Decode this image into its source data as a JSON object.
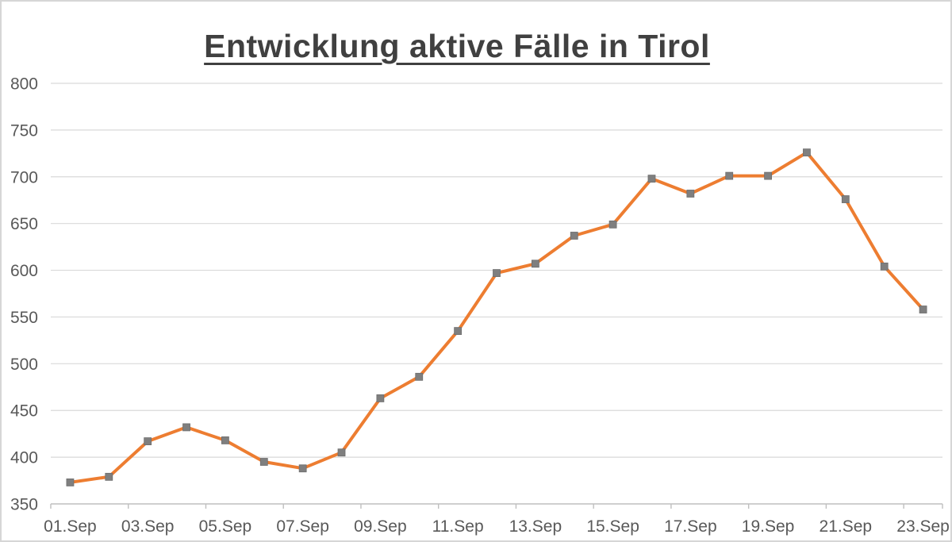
{
  "chart_data": {
    "type": "line",
    "title": "Entwicklung aktive Fälle in Tirol",
    "xlabel": "",
    "ylabel": "",
    "categories": [
      "01.Sep",
      "02.Sep",
      "03.Sep",
      "04.Sep",
      "05.Sep",
      "06.Sep",
      "07.Sep",
      "08.Sep",
      "09.Sep",
      "10.Sep",
      "11.Sep",
      "12.Sep",
      "13.Sep",
      "14.Sep",
      "15.Sep",
      "16.Sep",
      "17.Sep",
      "18.Sep",
      "19.Sep",
      "20.Sep",
      "21.Sep",
      "22.Sep",
      "23.Sep"
    ],
    "values": [
      373,
      379,
      417,
      432,
      418,
      395,
      388,
      405,
      463,
      486,
      535,
      597,
      607,
      637,
      649,
      698,
      682,
      701,
      701,
      726,
      676,
      604,
      558
    ],
    "series": [
      {
        "name": "aktive Fälle",
        "values": [
          373,
          379,
          417,
          432,
          418,
          395,
          388,
          405,
          463,
          486,
          535,
          597,
          607,
          637,
          649,
          698,
          682,
          701,
          701,
          726,
          676,
          604,
          558
        ]
      }
    ],
    "visible_x_tick_labels": [
      "01.Sep",
      "03.Sep",
      "05.Sep",
      "07.Sep",
      "09.Sep",
      "11.Sep",
      "13.Sep",
      "15.Sep",
      "17.Sep",
      "19.Sep",
      "21.Sep",
      "23.Sep"
    ],
    "x_label_every": 2,
    "y_tick_labels": [
      800,
      750,
      700,
      650,
      600,
      550,
      500,
      450,
      400,
      350
    ],
    "ylim": [
      350,
      800
    ],
    "ytick_step": 50,
    "grid": "horizontal",
    "legend": "none",
    "marker_shape": "square",
    "colors": {
      "line": "#ED7D31",
      "marker": "#7F7F7F",
      "marker_border": "#6E6E6E",
      "gridline": "#D9D9D9",
      "axis_line": "#BFBFBF",
      "tick_label": "#595959",
      "title": "#404040",
      "frame_border": "#D6D6D6",
      "background": "#FFFFFF"
    }
  }
}
